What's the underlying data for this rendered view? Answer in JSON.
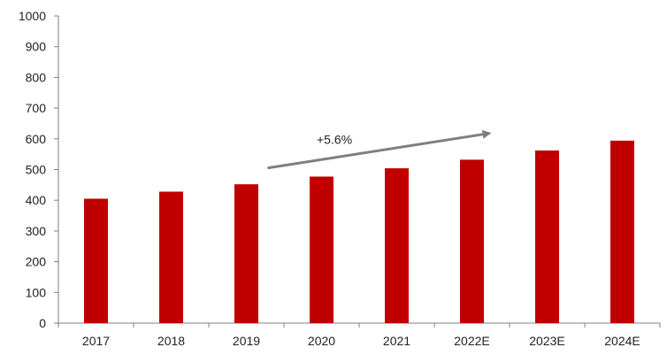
{
  "chart_data": {
    "type": "bar",
    "categories": [
      "2017",
      "2018",
      "2019",
      "2020",
      "2021",
      "2022E",
      "2023E",
      "2024E"
    ],
    "values": [
      405,
      428,
      452,
      477,
      504,
      532,
      562,
      594
    ],
    "title": "",
    "xlabel": "",
    "ylabel": "",
    "ylim": [
      0,
      1000
    ],
    "yticks": [
      0,
      100,
      200,
      300,
      400,
      500,
      600,
      700,
      800,
      900,
      1000
    ],
    "grid": false,
    "legend": "none",
    "bar_color": "#C00000",
    "annotation": {
      "text": "+5.6%",
      "arrow_color": "#7F7F7F",
      "from": {
        "x": "2019",
        "y": 505
      },
      "to": {
        "x": "2022E",
        "y": 618
      }
    }
  }
}
